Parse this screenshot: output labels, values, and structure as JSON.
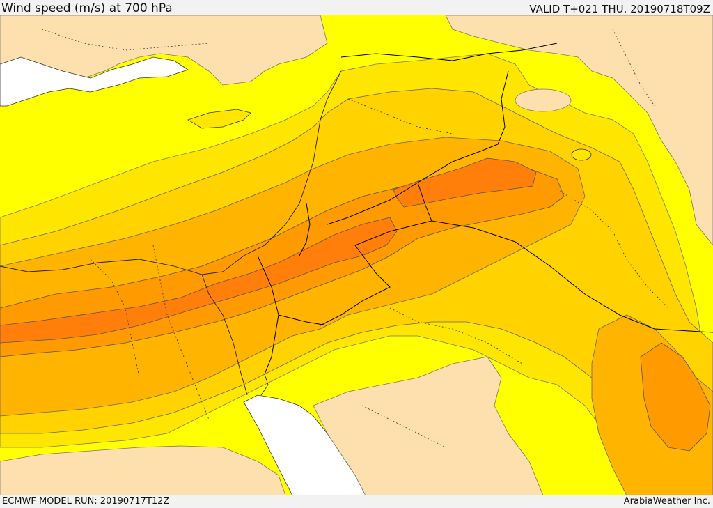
{
  "header": {
    "title": "Wind speed (m/s) at 700 hPa",
    "valid": "VALID T+021 THU. 20190718T09Z"
  },
  "footer": {
    "model_run": "ECMWF MODEL RUN: 20190717T12Z",
    "credit": "ArabiaWeather Inc."
  },
  "map": {
    "variable": "wind speed",
    "level": "700 hPa",
    "units": "m/s",
    "region": "Eastern Mediterranean / Levant / Middle East",
    "colors": {
      "sea_ice_free_white": "#ffffff",
      "calm_tan": "#fde0ad",
      "light_yellow": "#ffff00",
      "yellow": "#ffe600",
      "gold": "#ffd200",
      "amber": "#ffb400",
      "orange": "#ff9a00",
      "dark_orange": "#ff7f0a",
      "contour": "#555555",
      "border": "#000000",
      "coast": "#333333"
    }
  }
}
